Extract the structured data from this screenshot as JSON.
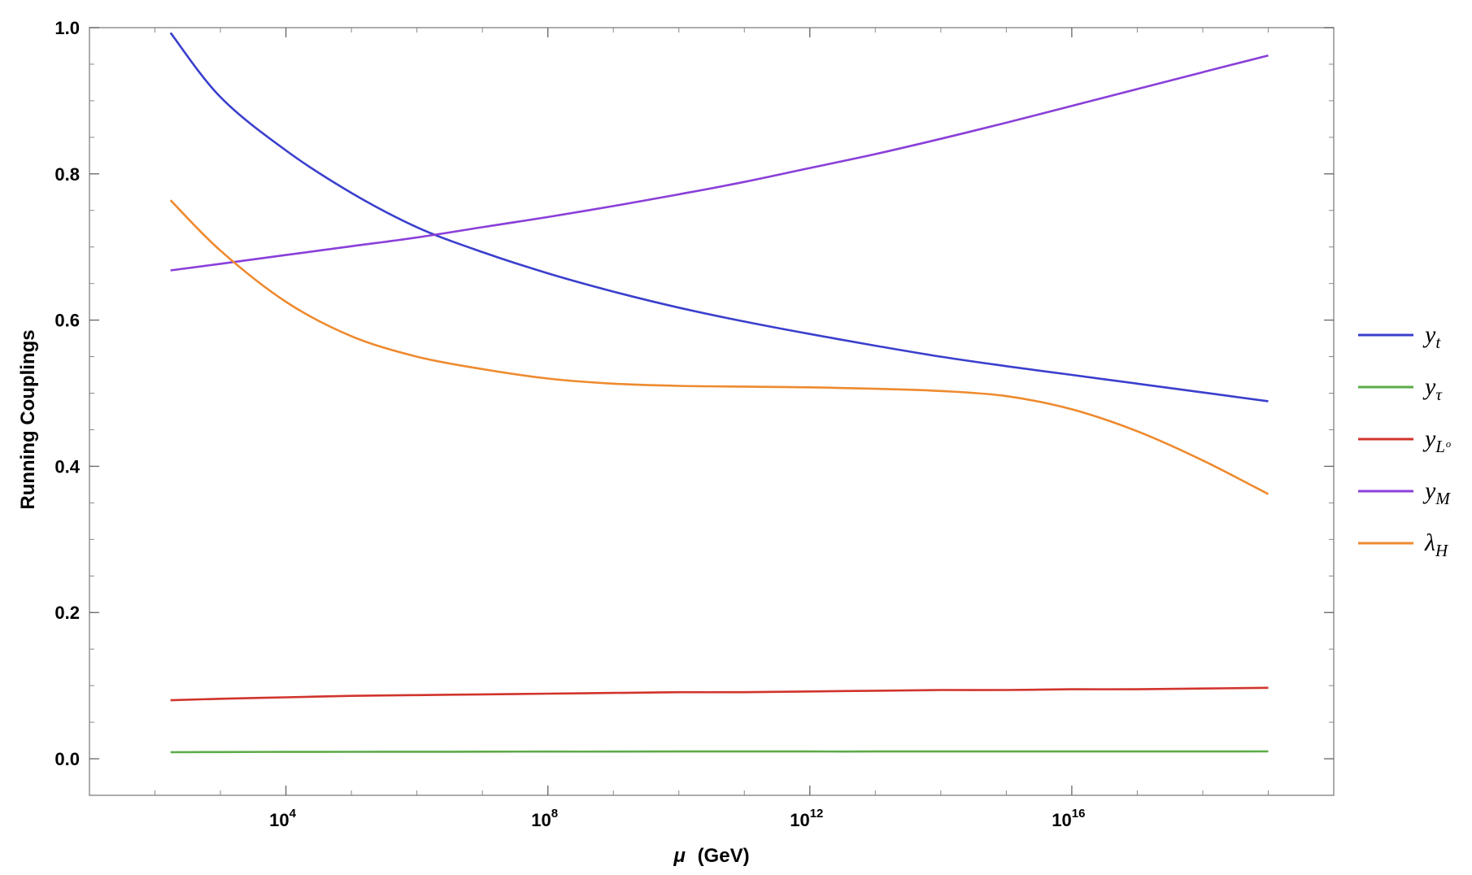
{
  "chart_data": {
    "type": "line",
    "xlabel_symbol": "μ",
    "xlabel_unit": "(GeV)",
    "ylabel": "Running Couplings",
    "x_scale": "log10",
    "xlim": [
      10,
      1e+20
    ],
    "ylim": [
      -0.05,
      1.0
    ],
    "x_ticks": [
      {
        "base": "10",
        "exp": "4",
        "value": 10000.0
      },
      {
        "base": "10",
        "exp": "8",
        "value": 100000000.0
      },
      {
        "base": "10",
        "exp": "12",
        "value": 1000000000000.0
      },
      {
        "base": "10",
        "exp": "16",
        "value": 1e+16
      }
    ],
    "y_ticks": [
      "0.0",
      "0.2",
      "0.4",
      "0.6",
      "0.8",
      "1.0"
    ],
    "legend_placement": "right",
    "x": [
      173,
      1000.0,
      10000.0,
      100000.0,
      1000000.0,
      10000000.0,
      100000000.0,
      1000000000.0,
      10000000000.0,
      100000000000.0,
      1000000000000.0,
      10000000000000.0,
      100000000000000.0,
      1000000000000000.0,
      1e+16,
      1e+17,
      1e+18,
      1e+19
    ],
    "series": [
      {
        "name": "y",
        "sub": "t",
        "color": "#3a3fcc",
        "values": [
          0.993,
          0.905,
          0.832,
          0.774,
          0.727,
          0.693,
          0.664,
          0.639,
          0.617,
          0.598,
          0.581,
          0.565,
          0.55,
          0.537,
          0.525,
          0.513,
          0.501,
          0.489
        ]
      },
      {
        "name": "y",
        "sub": "τ",
        "color": "#5cab48",
        "values": [
          0.009,
          0.0092,
          0.0094,
          0.0095,
          0.0096,
          0.0097,
          0.0098,
          0.0098,
          0.0099,
          0.0099,
          0.0099,
          0.0099,
          0.01,
          0.01,
          0.01,
          0.01,
          0.01,
          0.0101
        ]
      },
      {
        "name": "y",
        "sub": "Lᵒ",
        "color": "#d1342c",
        "values": [
          0.08,
          0.082,
          0.084,
          0.086,
          0.087,
          0.088,
          0.089,
          0.09,
          0.091,
          0.091,
          0.092,
          0.093,
          0.094,
          0.094,
          0.095,
          0.095,
          0.096,
          0.097
        ]
      },
      {
        "name": "y",
        "sub": "M",
        "color": "#8a3fd9",
        "values": [
          0.668,
          0.677,
          0.689,
          0.701,
          0.713,
          0.727,
          0.741,
          0.756,
          0.772,
          0.789,
          0.808,
          0.827,
          0.848,
          0.87,
          0.893,
          0.916,
          0.939,
          0.962
        ]
      },
      {
        "name": "λ",
        "sub": "H",
        "color": "#ee8a2e",
        "values": [
          0.764,
          0.695,
          0.625,
          0.578,
          0.55,
          0.533,
          0.52,
          0.513,
          0.51,
          0.509,
          0.508,
          0.506,
          0.503,
          0.496,
          0.478,
          0.448,
          0.408,
          0.362
        ]
      }
    ]
  }
}
